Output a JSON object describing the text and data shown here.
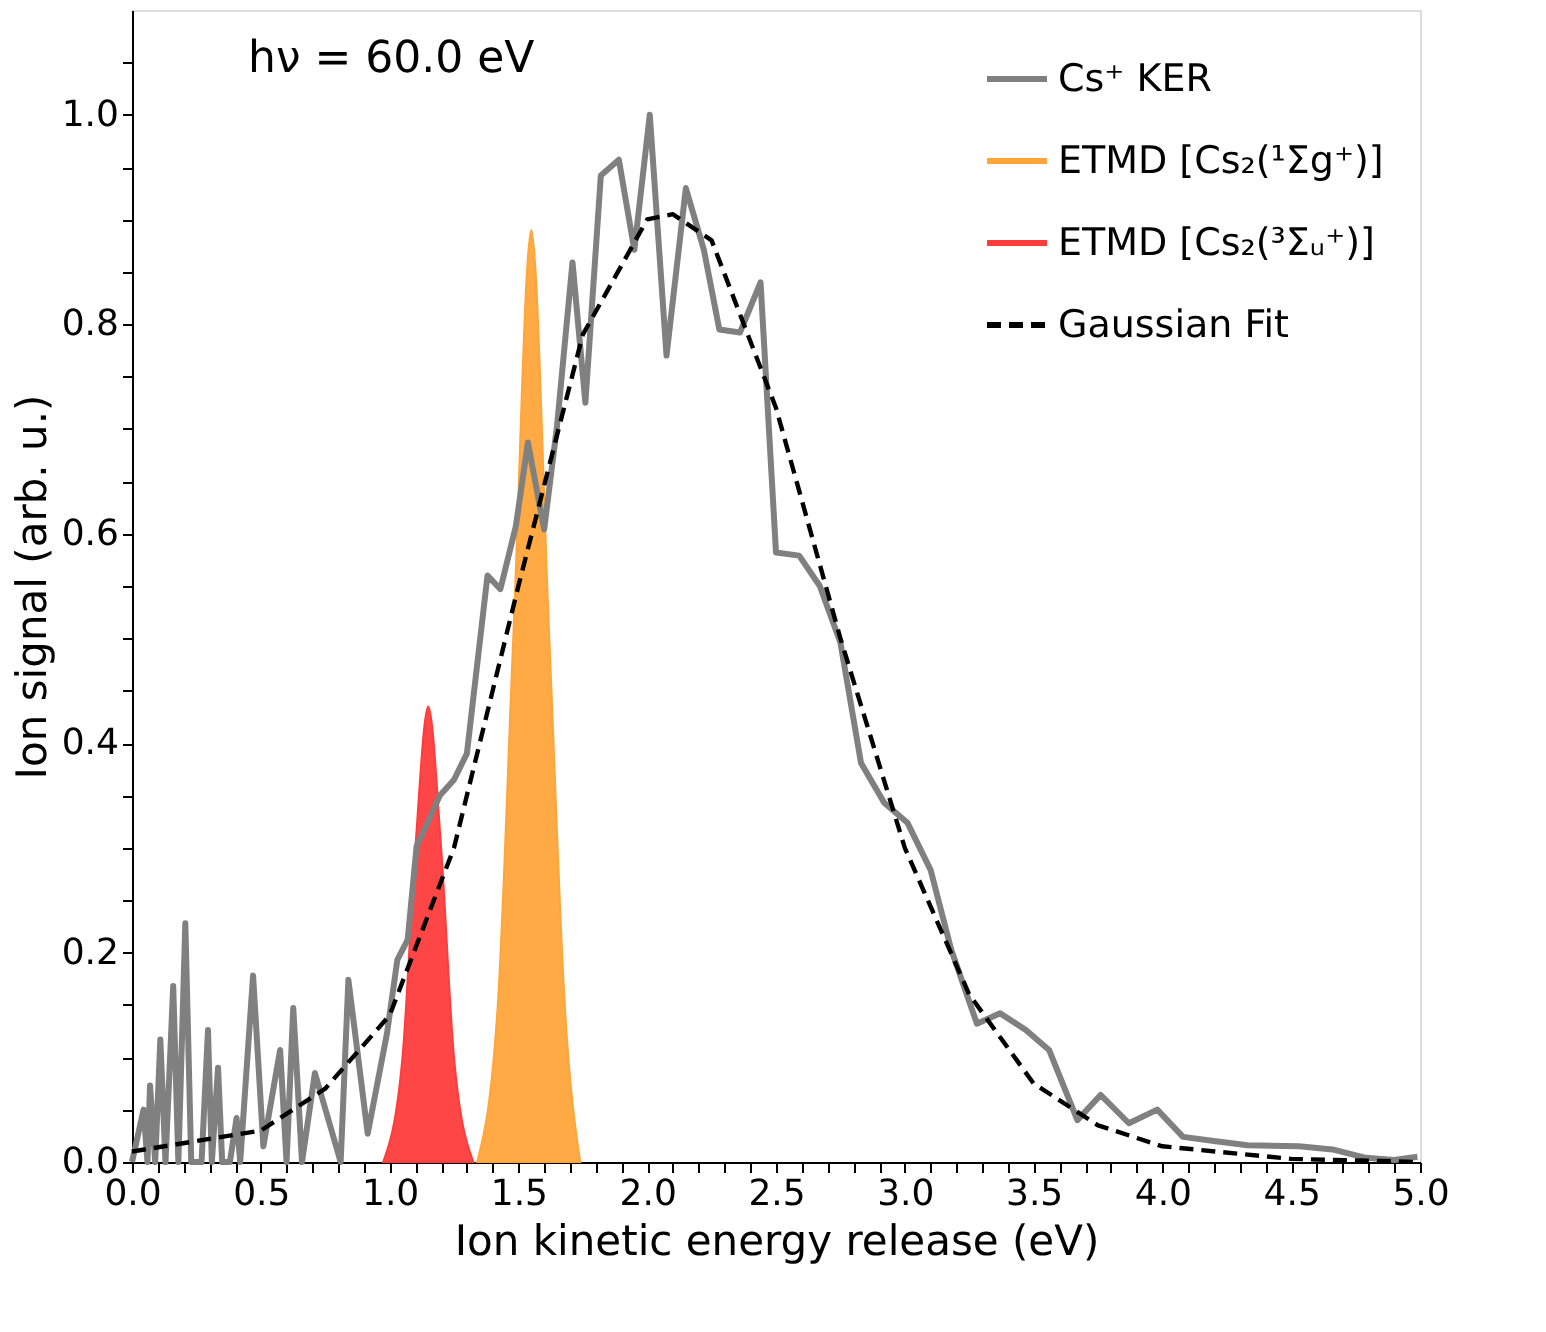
{
  "chart_data": {
    "type": "line",
    "xlabel": "Ion kinetic energy release (eV)",
    "ylabel": "Ion signal (arb. u.)",
    "annotations": [
      "hν = 60.0 eV"
    ],
    "xlim": [
      0,
      5
    ],
    "ylim": [
      0,
      1.1
    ],
    "xticks": [
      {
        "value": 0,
        "label": "0.0"
      },
      {
        "value": 0.1,
        "label": null
      },
      {
        "value": 0.2,
        "label": null
      },
      {
        "value": 0.3,
        "label": null
      },
      {
        "value": 0.4,
        "label": null
      },
      {
        "value": 0.5,
        "label": "0.5"
      },
      {
        "value": 0.6,
        "label": null
      },
      {
        "value": 0.7,
        "label": null
      },
      {
        "value": 0.8,
        "label": null
      },
      {
        "value": 0.9,
        "label": null
      },
      {
        "value": 1,
        "label": "1.0"
      },
      {
        "value": 1.1,
        "label": null
      },
      {
        "value": 1.2,
        "label": null
      },
      {
        "value": 1.3,
        "label": null
      },
      {
        "value": 1.4,
        "label": null
      },
      {
        "value": 1.5,
        "label": "1.5"
      },
      {
        "value": 1.6,
        "label": null
      },
      {
        "value": 1.7,
        "label": null
      },
      {
        "value": 1.8,
        "label": null
      },
      {
        "value": 1.9,
        "label": null
      },
      {
        "value": 2,
        "label": "2.0"
      },
      {
        "value": 2.1,
        "label": null
      },
      {
        "value": 2.2,
        "label": null
      },
      {
        "value": 2.3,
        "label": null
      },
      {
        "value": 2.4,
        "label": null
      },
      {
        "value": 2.5,
        "label": "2.5"
      },
      {
        "value": 2.6,
        "label": null
      },
      {
        "value": 2.7,
        "label": null
      },
      {
        "value": 2.8,
        "label": null
      },
      {
        "value": 2.9,
        "label": null
      },
      {
        "value": 3,
        "label": "3.0"
      },
      {
        "value": 3.1,
        "label": null
      },
      {
        "value": 3.2,
        "label": null
      },
      {
        "value": 3.3,
        "label": null
      },
      {
        "value": 3.4,
        "label": null
      },
      {
        "value": 3.5,
        "label": "3.5"
      },
      {
        "value": 3.6,
        "label": null
      },
      {
        "value": 3.7,
        "label": null
      },
      {
        "value": 3.8,
        "label": null
      },
      {
        "value": 3.9,
        "label": null
      },
      {
        "value": 4,
        "label": "4.0"
      },
      {
        "value": 4.1,
        "label": null
      },
      {
        "value": 4.2,
        "label": null
      },
      {
        "value": 4.3,
        "label": null
      },
      {
        "value": 4.4,
        "label": null
      },
      {
        "value": 4.5,
        "label": "4.5"
      },
      {
        "value": 4.6,
        "label": null
      },
      {
        "value": 4.7,
        "label": null
      },
      {
        "value": 4.8,
        "label": null
      },
      {
        "value": 4.9,
        "label": null
      },
      {
        "value": 5,
        "label": "5.0"
      }
    ],
    "yticks": [
      {
        "value": 0,
        "label": "0.0"
      },
      {
        "value": 0.05,
        "label": null
      },
      {
        "value": 0.1,
        "label": null
      },
      {
        "value": 0.15,
        "label": null
      },
      {
        "value": 0.2,
        "label": "0.2"
      },
      {
        "value": 0.25,
        "label": null
      },
      {
        "value": 0.3,
        "label": null
      },
      {
        "value": 0.35,
        "label": null
      },
      {
        "value": 0.4,
        "label": "0.4"
      },
      {
        "value": 0.45,
        "label": null
      },
      {
        "value": 0.5,
        "label": null
      },
      {
        "value": 0.55,
        "label": null
      },
      {
        "value": 0.6,
        "label": "0.6"
      },
      {
        "value": 0.65,
        "label": null
      },
      {
        "value": 0.7,
        "label": null
      },
      {
        "value": 0.75,
        "label": null
      },
      {
        "value": 0.8,
        "label": "0.8"
      },
      {
        "value": 0.85,
        "label": null
      },
      {
        "value": 0.9,
        "label": null
      },
      {
        "value": 0.95,
        "label": null
      },
      {
        "value": 1,
        "label": "1.0"
      },
      {
        "value": 1.05,
        "label": null
      }
    ],
    "grid": false,
    "legend": "top right",
    "marker": "none",
    "series": [
      {
        "name": "Cs⁺ KER",
        "color": "#808080",
        "line_style": "solid",
        "x": [
          0.0,
          0.045,
          0.06,
          0.07,
          0.09,
          0.11,
          0.13,
          0.16,
          0.18,
          0.207,
          0.23,
          0.27,
          0.295,
          0.31,
          0.334,
          0.35,
          0.38,
          0.406,
          0.42,
          0.47,
          0.51,
          0.575,
          0.6,
          0.626,
          0.66,
          0.71,
          0.81,
          0.84,
          0.915,
          0.99,
          1.03,
          1.07,
          1.105,
          1.14,
          1.195,
          1.25,
          1.3,
          1.38,
          1.43,
          1.49,
          1.537,
          1.6,
          1.65,
          1.71,
          1.76,
          1.82,
          1.89,
          1.95,
          2.01,
          2.075,
          2.15,
          2.22,
          2.28,
          2.36,
          2.44,
          2.5,
          2.59,
          2.67,
          2.75,
          2.83,
          2.92,
          3.01,
          3.1,
          3.18,
          3.28,
          3.37,
          3.47,
          3.56,
          3.67,
          3.76,
          3.87,
          3.98,
          4.08,
          4.2,
          4.33,
          4.53,
          4.66,
          4.79,
          4.9,
          4.99
        ],
        "values": [
          0.0,
          0.05,
          0.0,
          0.073,
          0.0,
          0.117,
          0.0,
          0.168,
          0.0,
          0.228,
          0.0,
          0.0,
          0.126,
          0.0,
          0.09,
          0.0,
          0.0,
          0.042,
          0.0,
          0.178,
          0.015,
          0.107,
          0.0,
          0.147,
          0.0,
          0.085,
          0.0,
          0.174,
          0.027,
          0.123,
          0.193,
          0.212,
          0.302,
          0.32,
          0.35,
          0.365,
          0.39,
          0.56,
          0.547,
          0.607,
          0.687,
          0.604,
          0.703,
          0.859,
          0.725,
          0.942,
          0.957,
          0.871,
          1.0,
          0.77,
          0.93,
          0.871,
          0.795,
          0.792,
          0.84,
          0.582,
          0.579,
          0.55,
          0.496,
          0.381,
          0.343,
          0.324,
          0.279,
          0.203,
          0.132,
          0.142,
          0.126,
          0.107,
          0.04,
          0.064,
          0.037,
          0.05,
          0.024,
          0.02,
          0.016,
          0.015,
          0.012,
          0.004,
          0.002,
          0.005
        ]
      },
      {
        "name": "ETMD [Cs₂(¹Σg⁺)]",
        "type": "area",
        "color": "#ffa53a",
        "x": [
          1.34,
          1.42,
          1.48,
          1.55,
          1.62,
          1.68,
          1.74
        ],
        "values": [
          0.0,
          0.15,
          0.5,
          0.89,
          0.5,
          0.15,
          0.0
        ]
      },
      {
        "name": "ETMD [Cs₂(³Σᵤ⁺)]",
        "type": "area",
        "color": "#ff3c3c",
        "x": [
          0.975,
          1.05,
          1.1,
          1.15,
          1.2,
          1.25,
          1.325
        ],
        "values": [
          0.0,
          0.1,
          0.3,
          0.435,
          0.3,
          0.1,
          0.0
        ]
      },
      {
        "name": "Gaussian Fit",
        "color": "#000000",
        "line_style": "dashed",
        "x": [
          0.0,
          0.25,
          0.5,
          0.75,
          1.0,
          1.25,
          1.5,
          1.75,
          2.0,
          2.1,
          2.25,
          2.5,
          2.75,
          3.0,
          3.25,
          3.5,
          3.75,
          4.0,
          4.5,
          5.0
        ],
        "values": [
          0.01,
          0.02,
          0.03,
          0.07,
          0.14,
          0.3,
          0.55,
          0.79,
          0.9,
          0.905,
          0.88,
          0.72,
          0.5,
          0.3,
          0.16,
          0.075,
          0.035,
          0.015,
          0.003,
          0.0
        ]
      }
    ]
  }
}
